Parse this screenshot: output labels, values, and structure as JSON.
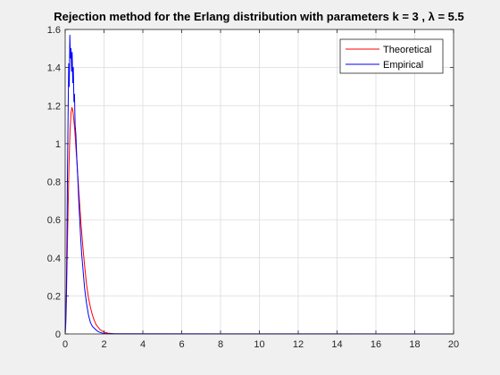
{
  "chart_data": {
    "type": "line",
    "title": "Rejection method for the Erlang distribution with parameters k = 3 , λ = 5.5",
    "xlabel": "",
    "ylabel": "",
    "xlim": [
      0,
      20
    ],
    "ylim": [
      0,
      1.6
    ],
    "xticks": [
      0,
      2,
      4,
      6,
      8,
      10,
      12,
      14,
      16,
      18,
      20
    ],
    "yticks": [
      0,
      0.2,
      0.4,
      0.6,
      0.8,
      1,
      1.2,
      1.4,
      1.6
    ],
    "grid": true,
    "legend": "top-right",
    "series": [
      {
        "name": "Theoretical",
        "color": "#ff0000",
        "x": [
          0,
          0.05,
          0.1,
          0.15,
          0.2,
          0.25,
          0.3,
          0.35,
          0.4,
          0.45,
          0.5,
          0.6,
          0.7,
          0.8,
          0.9,
          1.0,
          1.1,
          1.2,
          1.3,
          1.4,
          1.5,
          1.6,
          1.8,
          2.0,
          2.2,
          2.5,
          3,
          20
        ],
        "y": [
          0,
          0.115,
          0.378,
          0.663,
          0.903,
          1.07,
          1.16,
          1.19,
          1.17,
          1.12,
          1.06,
          0.91,
          0.75,
          0.6,
          0.47,
          0.36,
          0.26,
          0.19,
          0.14,
          0.1,
          0.07,
          0.048,
          0.022,
          0.01,
          0.004,
          0.001,
          0.0001,
          0
        ]
      },
      {
        "name": "Empirical",
        "color": "#0000ff",
        "x": [
          0,
          0.03,
          0.06,
          0.09,
          0.12,
          0.15,
          0.18,
          0.21,
          0.24,
          0.27,
          0.3,
          0.33,
          0.36,
          0.39,
          0.42,
          0.45,
          0.48,
          0.51,
          0.55,
          0.6,
          0.65,
          0.7,
          0.75,
          0.8,
          0.85,
          0.9,
          0.95,
          1.0,
          1.05,
          1.1,
          1.15,
          1.2,
          1.3,
          1.4,
          1.5,
          1.6,
          1.7,
          1.8,
          1.9,
          2.0,
          2.1,
          2.2,
          20
        ],
        "y": [
          0,
          0.05,
          0.22,
          0.48,
          0.88,
          1.15,
          1.42,
          1.3,
          1.57,
          1.45,
          1.5,
          1.38,
          1.48,
          1.32,
          1.4,
          1.22,
          1.26,
          1.1,
          1.05,
          0.92,
          0.82,
          0.7,
          0.6,
          0.5,
          0.42,
          0.36,
          0.3,
          0.24,
          0.2,
          0.16,
          0.13,
          0.1,
          0.06,
          0.04,
          0.03,
          0.02,
          0.012,
          0.008,
          0.005,
          0.003,
          0.002,
          0.001,
          0
        ]
      }
    ]
  }
}
